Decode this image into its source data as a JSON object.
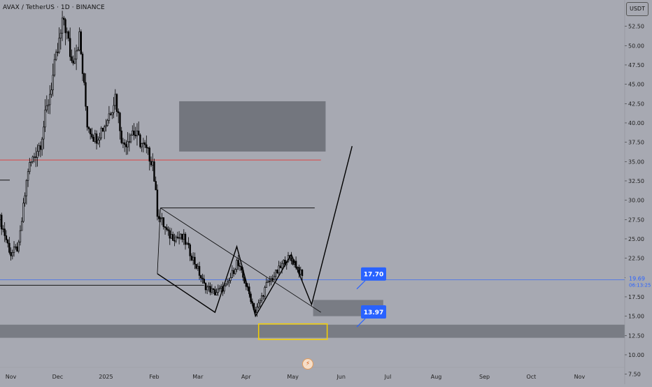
{
  "header": {
    "symbol_title": "AVAX / TetherUS · 1D · BINANCE",
    "currency": "USDT"
  },
  "price_scale": {
    "ticks": [
      "52.50",
      "50.00",
      "47.50",
      "45.00",
      "42.50",
      "40.00",
      "37.50",
      "35.00",
      "32.50",
      "30.00",
      "27.50",
      "25.00",
      "22.50",
      "20.00",
      "17.50",
      "15.00",
      "12.50",
      "10.00",
      "7.50"
    ],
    "current_price": "19.69",
    "countdown": "06:13:25"
  },
  "time_axis": {
    "labels": [
      "Nov",
      "Dec",
      "2025",
      "Feb",
      "Mar",
      "Apr",
      "May",
      "Jun",
      "Jul",
      "Aug",
      "Sep",
      "Oct",
      "Nov"
    ]
  },
  "callouts": {
    "upper": "17.70",
    "lower": "13.97"
  },
  "colors": {
    "background": "#a7a9b2",
    "candle": "#000000",
    "zone": "#6e7078",
    "red_level": "#e53935",
    "blue_callout": "#2962ff",
    "yellow_box": "#f5d000"
  },
  "chart_data": {
    "type": "candlestick",
    "y_range": [
      6.2,
      55.9
    ],
    "x_range": [
      "2024-10-25",
      "2025-11-30"
    ],
    "price_path": [
      {
        "date": "2024-10-25",
        "value": 27.5
      },
      {
        "date": "2024-11-01",
        "value": 23.0
      },
      {
        "date": "2024-11-06",
        "value": 24.0
      },
      {
        "date": "2024-11-12",
        "value": 34.0
      },
      {
        "date": "2024-11-20",
        "value": 37.5
      },
      {
        "date": "2024-11-28",
        "value": 46.0
      },
      {
        "date": "2024-12-05",
        "value": 53.5
      },
      {
        "date": "2024-12-10",
        "value": 48.0
      },
      {
        "date": "2024-12-15",
        "value": 51.0
      },
      {
        "date": "2024-12-20",
        "value": 40.0
      },
      {
        "date": "2024-12-25",
        "value": 38.0
      },
      {
        "date": "2025-01-01",
        "value": 40.0
      },
      {
        "date": "2025-01-07",
        "value": 43.5
      },
      {
        "date": "2025-01-12",
        "value": 37.0
      },
      {
        "date": "2025-01-18",
        "value": 39.0
      },
      {
        "date": "2025-01-25",
        "value": 37.0
      },
      {
        "date": "2025-01-31",
        "value": 35.0
      },
      {
        "date": "2025-02-03",
        "value": 28.5
      },
      {
        "date": "2025-02-10",
        "value": 25.5
      },
      {
        "date": "2025-02-20",
        "value": 25.0
      },
      {
        "date": "2025-02-28",
        "value": 21.5
      },
      {
        "date": "2025-03-05",
        "value": 19.0
      },
      {
        "date": "2025-03-12",
        "value": 18.0
      },
      {
        "date": "2025-03-20",
        "value": 19.0
      },
      {
        "date": "2025-03-26",
        "value": 22.0
      },
      {
        "date": "2025-04-01",
        "value": 19.0
      },
      {
        "date": "2025-04-07",
        "value": 15.5
      },
      {
        "date": "2025-04-14",
        "value": 19.0
      },
      {
        "date": "2025-04-22",
        "value": 21.0
      },
      {
        "date": "2025-04-27",
        "value": 22.5
      },
      {
        "date": "2025-05-02",
        "value": 22.0
      },
      {
        "date": "2025-05-06",
        "value": 20.5
      },
      {
        "date": "2025-05-08",
        "value": 19.7
      }
    ],
    "horizontal_lines": [
      {
        "type": "support",
        "value": 35.2,
        "color": "#e53935"
      },
      {
        "type": "resistance",
        "value": 29.0,
        "color": "#000000"
      },
      {
        "type": "level",
        "value": 19.0,
        "color": "#000000"
      },
      {
        "type": "current_price",
        "value": 19.69,
        "color": "#2962ff"
      }
    ],
    "zones": [
      {
        "type": "target",
        "from": "2025-02-17",
        "to": "2025-05-22",
        "low": 36.3,
        "high": 42.8
      },
      {
        "type": "entry",
        "from": "2025-05-14",
        "to": "2025-06-28",
        "low": 15.0,
        "high": 17.1
      },
      {
        "type": "support_band",
        "from": "2024-10-25",
        "to": "2025-11-30",
        "low": 12.2,
        "high": 13.9
      }
    ],
    "highlight_box": {
      "from": "2025-04-09",
      "to": "2025-05-23",
      "low": 12.0,
      "high": 14.0
    },
    "projection_path": [
      {
        "date": "2025-02-03",
        "value": 20.5
      },
      {
        "date": "2025-03-12",
        "value": 15.5
      },
      {
        "date": "2025-03-26",
        "value": 24.0
      },
      {
        "date": "2025-04-07",
        "value": 15.0
      },
      {
        "date": "2025-04-30",
        "value": 23.0
      },
      {
        "date": "2025-05-13",
        "value": 16.5
      },
      {
        "date": "2025-06-08",
        "value": 37.0
      }
    ],
    "wedge_lines": [
      [
        {
          "date": "2025-02-05",
          "value": 29.0
        },
        {
          "date": "2025-05-19",
          "value": 15.5
        }
      ],
      [
        {
          "date": "2025-02-05",
          "value": 29.0
        },
        {
          "date": "2025-02-03",
          "value": 20.5
        }
      ]
    ],
    "callouts": [
      {
        "value": 17.7,
        "label": "17.70",
        "date": "2025-06-20"
      },
      {
        "value": 13.97,
        "label": "13.97",
        "date": "2025-06-20"
      }
    ]
  }
}
